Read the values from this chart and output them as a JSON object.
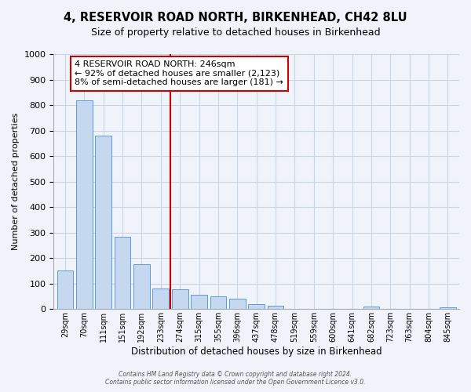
{
  "title": "4, RESERVOIR ROAD NORTH, BIRKENHEAD, CH42 8LU",
  "subtitle": "Size of property relative to detached houses in Birkenhead",
  "xlabel": "Distribution of detached houses by size in Birkenhead",
  "ylabel": "Number of detached properties",
  "bar_labels": [
    "29sqm",
    "70sqm",
    "111sqm",
    "151sqm",
    "192sqm",
    "233sqm",
    "274sqm",
    "315sqm",
    "355sqm",
    "396sqm",
    "437sqm",
    "478sqm",
    "519sqm",
    "559sqm",
    "600sqm",
    "641sqm",
    "682sqm",
    "723sqm",
    "763sqm",
    "804sqm",
    "845sqm"
  ],
  "bar_values": [
    150,
    820,
    680,
    285,
    175,
    80,
    78,
    55,
    50,
    42,
    20,
    12,
    0,
    0,
    0,
    0,
    10,
    0,
    0,
    0,
    8
  ],
  "bar_color": "#c5d8f0",
  "bar_edge_color": "#5b9bd5",
  "vline_x": 5.5,
  "vline_color": "#cc0000",
  "ylim": [
    0,
    1000
  ],
  "yticks": [
    0,
    100,
    200,
    300,
    400,
    500,
    600,
    700,
    800,
    900,
    1000
  ],
  "annotation_line1": "4 RESERVOIR ROAD NORTH: 246sqm",
  "annotation_line2": "← 92% of detached houses are smaller (2,123)",
  "annotation_line3": "8% of semi-detached houses are larger (181) →",
  "annotation_box_color": "#ffffff",
  "annotation_box_edge": "#cc0000",
  "footer_line1": "Contains HM Land Registry data © Crown copyright and database right 2024.",
  "footer_line2": "Contains public sector information licensed under the Open Government Licence v3.0.",
  "bg_color": "#f0f4fa",
  "grid_color": "#c8d4e8",
  "title_fontsize": 10.5,
  "subtitle_fontsize": 9
}
